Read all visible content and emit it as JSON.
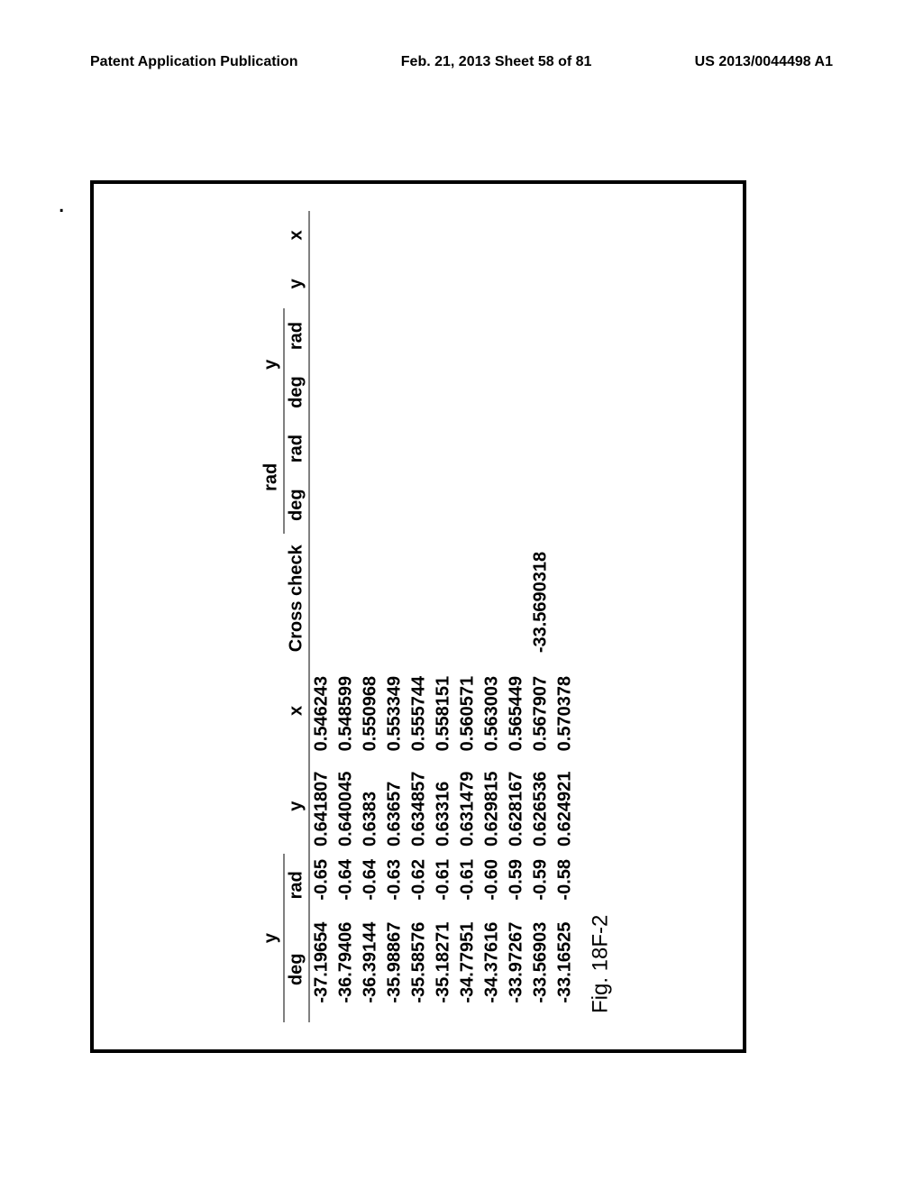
{
  "header": {
    "left": "Patent Application Publication",
    "center": "Feb. 21, 2013  Sheet 58 of 81",
    "right": "US 2013/0044498 A1"
  },
  "table": {
    "group_headers": {
      "g1": "y",
      "g2": "rad",
      "g3": "y"
    },
    "sub_headers": {
      "h1": "deg",
      "h2": "rad",
      "h3": "y",
      "h4": "x",
      "h5": "Cross check",
      "h6": "deg",
      "h7": "rad",
      "h8": "deg",
      "h9": "rad",
      "h10": "y",
      "h11": "x"
    },
    "rows": [
      {
        "deg": "-37.19654",
        "rad": "-0.65",
        "y": "0.641807",
        "x": "0.546243",
        "cross": ""
      },
      {
        "deg": "-36.79406",
        "rad": "-0.64",
        "y": "0.640045",
        "x": "0.548599",
        "cross": ""
      },
      {
        "deg": "-36.39144",
        "rad": "-0.64",
        "y": "0.6383",
        "x": "0.550968",
        "cross": ""
      },
      {
        "deg": "-35.98867",
        "rad": "-0.63",
        "y": "0.63657",
        "x": "0.553349",
        "cross": ""
      },
      {
        "deg": "-35.58576",
        "rad": "-0.62",
        "y": "0.634857",
        "x": "0.555744",
        "cross": ""
      },
      {
        "deg": "-35.18271",
        "rad": "-0.61",
        "y": "0.63316",
        "x": "0.558151",
        "cross": ""
      },
      {
        "deg": "-34.77951",
        "rad": "-0.61",
        "y": "0.631479",
        "x": "0.560571",
        "cross": ""
      },
      {
        "deg": "-34.37616",
        "rad": "-0.60",
        "y": "0.629815",
        "x": "0.563003",
        "cross": ""
      },
      {
        "deg": "-33.97267",
        "rad": "-0.59",
        "y": "0.628167",
        "x": "0.565449",
        "cross": ""
      },
      {
        "deg": "-33.56903",
        "rad": "-0.59",
        "y": "0.626536",
        "x": "0.567907",
        "cross": "-33.5690318"
      },
      {
        "deg": "-33.16525",
        "rad": "-0.58",
        "y": "0.624921",
        "x": "0.570378",
        "cross": ""
      }
    ]
  },
  "figure_caption": "Fig. 18F-2"
}
